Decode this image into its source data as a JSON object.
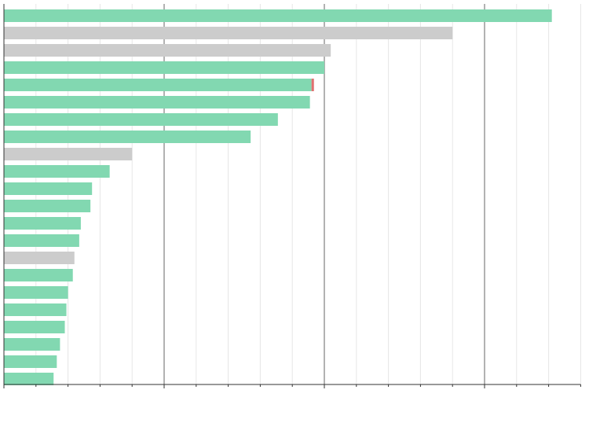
{
  "chart_data": {
    "type": "bar",
    "orientation": "horizontal",
    "stacked": true,
    "categories": [
      null,
      null,
      null,
      null,
      null,
      null,
      null,
      null,
      null,
      null,
      null,
      null,
      null,
      null,
      null,
      null,
      null,
      null,
      null,
      null,
      null,
      null
    ],
    "series": [
      {
        "colors": [
          "#82d8b1",
          "#cccccc",
          "#cccccc",
          "#82d8b1",
          "#82d8b1",
          "#82d8b1",
          "#82d8b1",
          "#82d8b1",
          "#cccccc",
          "#82d8b1",
          "#82d8b1",
          "#82d8b1",
          "#82d8b1",
          "#82d8b1",
          "#cccccc",
          "#82d8b1",
          "#82d8b1",
          "#82d8b1",
          "#82d8b1",
          "#82d8b1",
          "#82d8b1",
          "#82d8b1"
        ],
        "values": [
          342,
          280,
          204,
          200,
          192,
          191,
          171,
          154,
          80,
          66,
          55,
          54,
          48,
          47,
          44,
          43,
          40,
          39,
          38,
          35,
          33,
          31
        ]
      },
      {
        "color": "#e07070",
        "values": [
          null,
          null,
          null,
          null,
          1.5,
          null,
          null,
          null,
          null,
          null,
          null,
          null,
          null,
          null,
          null,
          null,
          null,
          null,
          null,
          null,
          null,
          null
        ]
      }
    ],
    "xlim": [
      0,
      360
    ],
    "xticks": [
      0,
      100,
      200,
      300
    ],
    "xminorticks": [
      20,
      40,
      60,
      80,
      120,
      140,
      160,
      180,
      220,
      240,
      260,
      280,
      320,
      340,
      360
    ],
    "grid": true
  }
}
